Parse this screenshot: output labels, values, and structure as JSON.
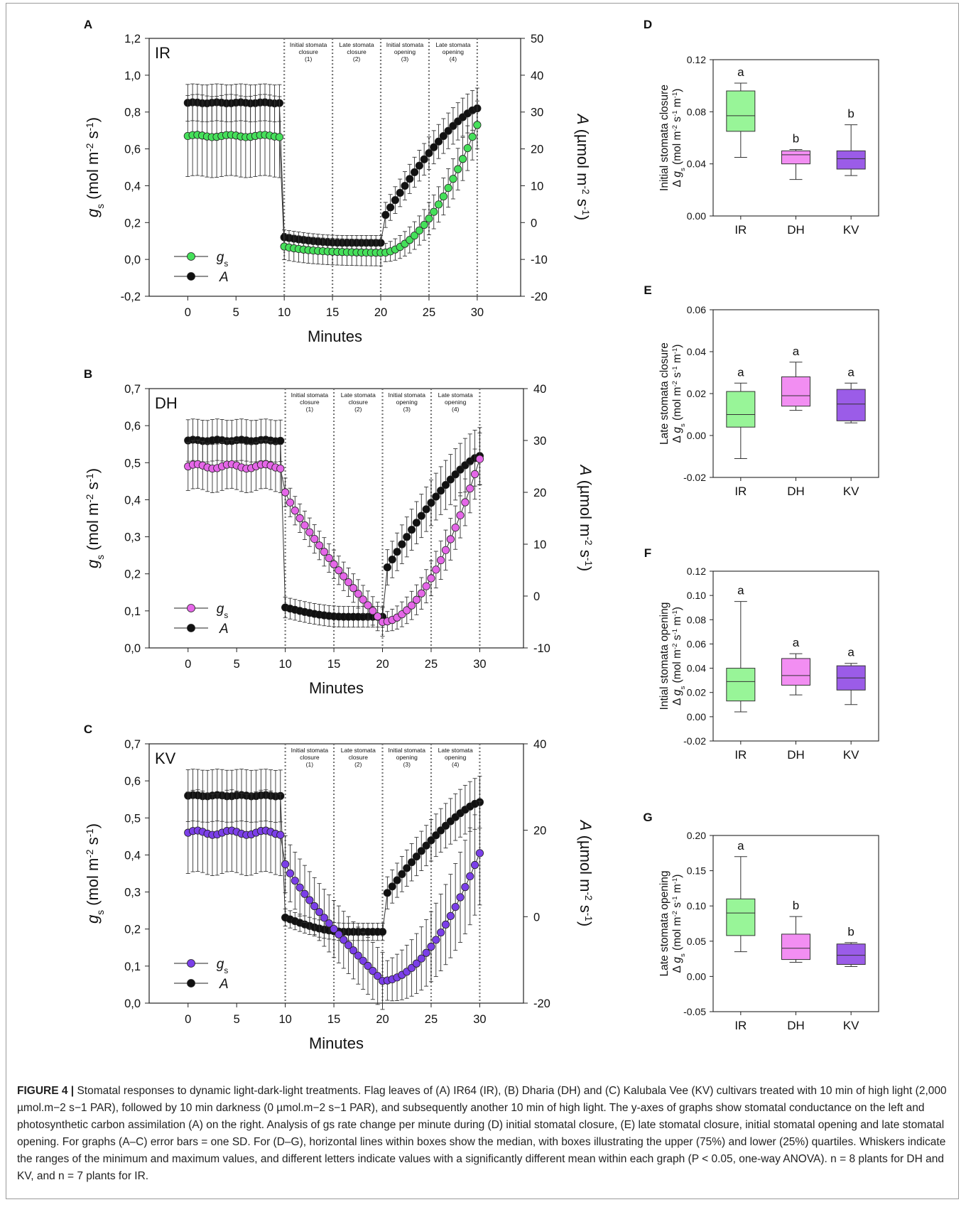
{
  "chart_data": [
    {
      "panel": "A",
      "type": "line",
      "name": "IR",
      "xlabel": "Minutes",
      "xticks": [
        0,
        5,
        10,
        15,
        20,
        25,
        30
      ],
      "xlim": [
        -4,
        34.5
      ],
      "yleft_label": "gs (mol m-2 s-1)",
      "yleft_ticks": [
        "-0,2",
        "0,0",
        "0,2",
        "0,4",
        "0,6",
        "0,8",
        "1,0",
        "1,2"
      ],
      "yleft_lim": [
        -0.2,
        1.2
      ],
      "yright_label": "A (µmol m-2 s-1)",
      "yright_ticks": [
        "-20",
        "-10",
        "0",
        "10",
        "20",
        "30",
        "40",
        "50"
      ],
      "yright_lim": [
        -20,
        50
      ],
      "phases": [
        "Initial stomata closure (1)",
        "Late stomata closure (2)",
        "Initial stomata opening (3)",
        "Late stomata opening (4)"
      ],
      "phase_lines": [
        10,
        15,
        20,
        25,
        30
      ],
      "legend": [
        "g_s",
        "A"
      ],
      "gs": {
        "color": "#45e05a",
        "plateau": 0.67,
        "sd": 0.22,
        "p1": 0.07,
        "min": 0.035,
        "end": 0.73,
        "sd_after": 0.13
      },
      "A": {
        "color": "#111111",
        "plateau": 32.5,
        "sd": 5.0,
        "p1": -4.0,
        "low": -5.5,
        "p3": 0,
        "end": 31,
        "sd_after": 5.5
      }
    },
    {
      "panel": "B",
      "type": "line",
      "name": "DH",
      "xlabel": "Minutes",
      "xticks": [
        0,
        5,
        10,
        15,
        20,
        25,
        30
      ],
      "xlim": [
        -4,
        34.5
      ],
      "yleft_label": "gs (mol m-2 s-1)",
      "yleft_ticks": [
        "0,0",
        "0,1",
        "0,2",
        "0,3",
        "0,4",
        "0,5",
        "0,6",
        "0,7"
      ],
      "yleft_lim": [
        0,
        0.7
      ],
      "yright_label": "A (µmol m-2 s-1)",
      "yright_ticks": [
        "-10",
        "0",
        "10",
        "20",
        "30",
        "40"
      ],
      "yright_lim": [
        -10,
        40
      ],
      "phases": [
        "Initial stomata closure (1)",
        "Late stomata closure (2)",
        "Initial stomata opening (3)",
        "Late stomata opening (4)"
      ],
      "phase_lines": [
        10,
        15,
        20,
        25,
        30
      ],
      "legend": [
        "g_s",
        "A"
      ],
      "gs": {
        "color": "#e566e8",
        "plateau": 0.49,
        "sd": 0.065,
        "p1": 0.42,
        "min": 0.07,
        "end": 0.51,
        "sd_after": 0.07
      },
      "A": {
        "color": "#111111",
        "plateau": 30,
        "sd": 4.0,
        "p1": -2.2,
        "low": -4.0,
        "p3": 4.0,
        "end": 27,
        "sd_after": 5.5
      }
    },
    {
      "panel": "C",
      "type": "line",
      "name": "KV",
      "xlabel": "Minutes",
      "xticks": [
        0,
        5,
        10,
        15,
        20,
        25,
        30
      ],
      "xlim": [
        -4,
        34.5
      ],
      "yleft_label": "gs (mol m-2 s-1)",
      "yleft_ticks": [
        "0,0",
        "0,1",
        "0,2",
        "0,3",
        "0,4",
        "0,5",
        "0,6",
        "0,7"
      ],
      "yleft_lim": [
        0,
        0.7
      ],
      "yright_label": "A (µmol m-2 s-1)",
      "yright_ticks": [
        "-20",
        "0",
        "20",
        "40"
      ],
      "yright_lim": [
        -20,
        40
      ],
      "phases": [
        "Initial stomata closure (1)",
        "Late stomata closure (2)",
        "Initial stomata opening (3)",
        "Late stomata opening (4)"
      ],
      "phase_lines": [
        10,
        15,
        20,
        25,
        30
      ],
      "legend": [
        "g_s",
        "A"
      ],
      "gs": {
        "color": "#7b3fe8",
        "plateau": 0.46,
        "sd": 0.11,
        "p1": 0.375,
        "min": 0.06,
        "end": 0.405,
        "sd_after": 0.14
      },
      "A": {
        "color": "#111111",
        "plateau": 28,
        "sd": 6.0,
        "p1": -0.2,
        "low": -3.5,
        "p3": 4.0,
        "end": 26.5,
        "sd_after": 6.0
      }
    },
    {
      "panel": "D",
      "type": "box",
      "ylabel": "Initial stomata closure Δ gs (mol m-2 s-1 m-1)",
      "categories": [
        "IR",
        "DH",
        "KV"
      ],
      "ylim": [
        0,
        0.12
      ],
      "yticks": [
        "0.00",
        "0.04",
        "0.08",
        "0.12"
      ],
      "ytick_values": [
        0,
        0.04,
        0.08,
        0.12
      ],
      "boxes": [
        {
          "min": 0.045,
          "q1": 0.065,
          "median": 0.077,
          "q3": 0.096,
          "max": 0.102,
          "letter": "a"
        },
        {
          "min": 0.028,
          "q1": 0.04,
          "median": 0.047,
          "q3": 0.05,
          "max": 0.051,
          "letter": "b"
        },
        {
          "min": 0.031,
          "q1": 0.036,
          "median": 0.044,
          "q3": 0.05,
          "max": 0.07,
          "letter": "b"
        }
      ]
    },
    {
      "panel": "E",
      "type": "box",
      "ylabel": "Late stomata closure Δ gs (mol m-2 s-1 m-1)",
      "categories": [
        "IR",
        "DH",
        "KV"
      ],
      "ylim": [
        -0.02,
        0.06
      ],
      "yticks": [
        "-0.02",
        "0.00",
        "0.02",
        "0.04",
        "0.06"
      ],
      "ytick_values": [
        -0.02,
        0,
        0.02,
        0.04,
        0.06
      ],
      "boxes": [
        {
          "min": -0.011,
          "q1": 0.004,
          "median": 0.01,
          "q3": 0.021,
          "max": 0.025,
          "letter": "a"
        },
        {
          "min": 0.012,
          "q1": 0.014,
          "median": 0.019,
          "q3": 0.028,
          "max": 0.035,
          "letter": "a"
        },
        {
          "min": 0.006,
          "q1": 0.007,
          "median": 0.015,
          "q3": 0.022,
          "max": 0.025,
          "letter": "a"
        }
      ]
    },
    {
      "panel": "F",
      "type": "box",
      "ylabel": "Intial stomata opening Δ gs (mol m-2 s-1 m-1)",
      "categories": [
        "IR",
        "DH",
        "KV"
      ],
      "ylim": [
        -0.02,
        0.12
      ],
      "yticks": [
        "-0.02",
        "0.00",
        "0.02",
        "0.04",
        "0.06",
        "0.08",
        "0.10",
        "0.12"
      ],
      "ytick_values": [
        -0.02,
        0,
        0.02,
        0.04,
        0.06,
        0.08,
        0.1,
        0.12
      ],
      "boxes": [
        {
          "min": 0.004,
          "q1": 0.013,
          "median": 0.029,
          "q3": 0.04,
          "max": 0.095,
          "letter": "a"
        },
        {
          "min": 0.018,
          "q1": 0.026,
          "median": 0.034,
          "q3": 0.048,
          "max": 0.052,
          "letter": "a"
        },
        {
          "min": 0.01,
          "q1": 0.022,
          "median": 0.032,
          "q3": 0.042,
          "max": 0.044,
          "letter": "a"
        }
      ]
    },
    {
      "panel": "G",
      "type": "box",
      "ylabel": "Late stomata opening Δ gs (mol m-2 s-1 m-1)",
      "categories": [
        "IR",
        "DH",
        "KV"
      ],
      "ylim": [
        -0.05,
        0.2
      ],
      "yticks": [
        "-0.05",
        "0.00",
        "0.05",
        "0.10",
        "0.15",
        "0.20"
      ],
      "ytick_values": [
        -0.05,
        0,
        0.05,
        0.1,
        0.15,
        0.2
      ],
      "boxes": [
        {
          "min": 0.035,
          "q1": 0.058,
          "median": 0.09,
          "q3": 0.11,
          "max": 0.17,
          "letter": "a"
        },
        {
          "min": 0.02,
          "q1": 0.024,
          "median": 0.04,
          "q3": 0.06,
          "max": 0.085,
          "letter": "b"
        },
        {
          "min": 0.014,
          "q1": 0.017,
          "median": 0.03,
          "q3": 0.046,
          "max": 0.048,
          "letter": "b"
        }
      ]
    }
  ],
  "box_colors": {
    "IR": "#98f598",
    "DH": "#f28ef2",
    "KV": "#9b5ce8"
  },
  "caption": {
    "label": "FIGURE 4 |",
    "text": "Stomatal responses to dynamic light-dark-light treatments. Flag leaves of (A) IR64 (IR), (B) Dharia (DH) and (C) Kalubala Vee (KV) cultivars treated with 10 min of high light (2,000 µmol.m−2 s−1 PAR), followed by 10 min darkness (0 µmol.m−2 s−1 PAR), and subsequently another 10 min of high light. The y-axes of graphs show stomatal conductance on the left and photosynthetic carbon assimilation (A) on the right. Analysis of gs rate change per minute during (D) initial stomatal closure, (E) late stomatal closure, initial stomatal opening and late stomatal opening. For graphs (A–C) error bars = one SD. For (D–G), horizontal lines within boxes show the median, with boxes illustrating the upper (75%) and lower (25%) quartiles. Whiskers indicate the ranges of the minimum and maximum values, and different letters indicate values with a significantly different mean within each graph (P < 0.05, one-way ANOVA). n = 8 plants for DH and KV, and n = 7 plants for IR."
  }
}
